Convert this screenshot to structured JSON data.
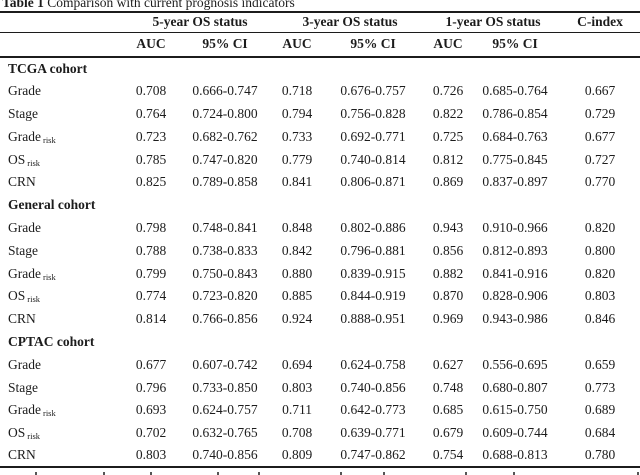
{
  "title": {
    "bold": "Table 1",
    "rest": " Comparison with current prognosis indicators"
  },
  "columns": {
    "group_headers": [
      "5-year OS status",
      "3-year OS status",
      "1-year OS status"
    ],
    "c_index_header": "C-index",
    "sub_headers": [
      "AUC",
      "95% CI",
      "AUC",
      "95% CI",
      "AUC",
      "95% CI"
    ]
  },
  "sections": [
    {
      "name": "TCGA cohort",
      "rows": [
        {
          "label": "Grade",
          "subscript": "",
          "values": [
            "0.708",
            "0.666-0.747",
            "0.718",
            "0.676-0.757",
            "0.726",
            "0.685-0.764",
            "0.667"
          ]
        },
        {
          "label": "Stage",
          "subscript": "",
          "values": [
            "0.764",
            "0.724-0.800",
            "0.794",
            "0.756-0.828",
            "0.822",
            "0.786-0.854",
            "0.729"
          ]
        },
        {
          "label": "Grade",
          "subscript": "risk",
          "values": [
            "0.723",
            "0.682-0.762",
            "0.733",
            "0.692-0.771",
            "0.725",
            "0.684-0.763",
            "0.677"
          ]
        },
        {
          "label": "OS",
          "subscript": "risk",
          "values": [
            "0.785",
            "0.747-0.820",
            "0.779",
            "0.740-0.814",
            "0.812",
            "0.775-0.845",
            "0.727"
          ]
        },
        {
          "label": "CRN",
          "subscript": "",
          "values": [
            "0.825",
            "0.789-0.858",
            "0.841",
            "0.806-0.871",
            "0.869",
            "0.837-0.897",
            "0.770"
          ]
        }
      ]
    },
    {
      "name": "General cohort",
      "rows": [
        {
          "label": "Grade",
          "subscript": "",
          "values": [
            "0.798",
            "0.748-0.841",
            "0.848",
            "0.802-0.886",
            "0.943",
            "0.910-0.966",
            "0.820"
          ]
        },
        {
          "label": "Stage",
          "subscript": "",
          "values": [
            "0.788",
            "0.738-0.833",
            "0.842",
            "0.796-0.881",
            "0.856",
            "0.812-0.893",
            "0.800"
          ]
        },
        {
          "label": "Grade",
          "subscript": "risk",
          "values": [
            "0.799",
            "0.750-0.843",
            "0.880",
            "0.839-0.915",
            "0.882",
            "0.841-0.916",
            "0.820"
          ]
        },
        {
          "label": "OS",
          "subscript": "risk",
          "values": [
            "0.774",
            "0.723-0.820",
            "0.885",
            "0.844-0.919",
            "0.870",
            "0.828-0.906",
            "0.803"
          ]
        },
        {
          "label": "CRN",
          "subscript": "",
          "values": [
            "0.814",
            "0.766-0.856",
            "0.924",
            "0.888-0.951",
            "0.969",
            "0.943-0.986",
            "0.846"
          ]
        }
      ]
    },
    {
      "name": "CPTAC cohort",
      "rows": [
        {
          "label": "Grade",
          "subscript": "",
          "values": [
            "0.677",
            "0.607-0.742",
            "0.694",
            "0.624-0.758",
            "0.627",
            "0.556-0.695",
            "0.659"
          ]
        },
        {
          "label": "Stage",
          "subscript": "",
          "values": [
            "0.796",
            "0.733-0.850",
            "0.803",
            "0.740-0.856",
            "0.748",
            "0.680-0.807",
            "0.773"
          ]
        },
        {
          "label": "Grade",
          "subscript": "risk",
          "values": [
            "0.693",
            "0.624-0.757",
            "0.711",
            "0.642-0.773",
            "0.685",
            "0.615-0.750",
            "0.689"
          ]
        },
        {
          "label": "OS",
          "subscript": "risk",
          "values": [
            "0.702",
            "0.632-0.765",
            "0.708",
            "0.639-0.771",
            "0.679",
            "0.609-0.744",
            "0.684"
          ]
        },
        {
          "label": "CRN",
          "subscript": "",
          "values": [
            "0.803",
            "0.740-0.856",
            "0.809",
            "0.747-0.862",
            "0.754",
            "0.688-0.813",
            "0.780"
          ]
        }
      ]
    }
  ],
  "colors": {
    "text": "#1c1c1c",
    "background": "#ffffff",
    "rule": "#1c1c1c"
  }
}
